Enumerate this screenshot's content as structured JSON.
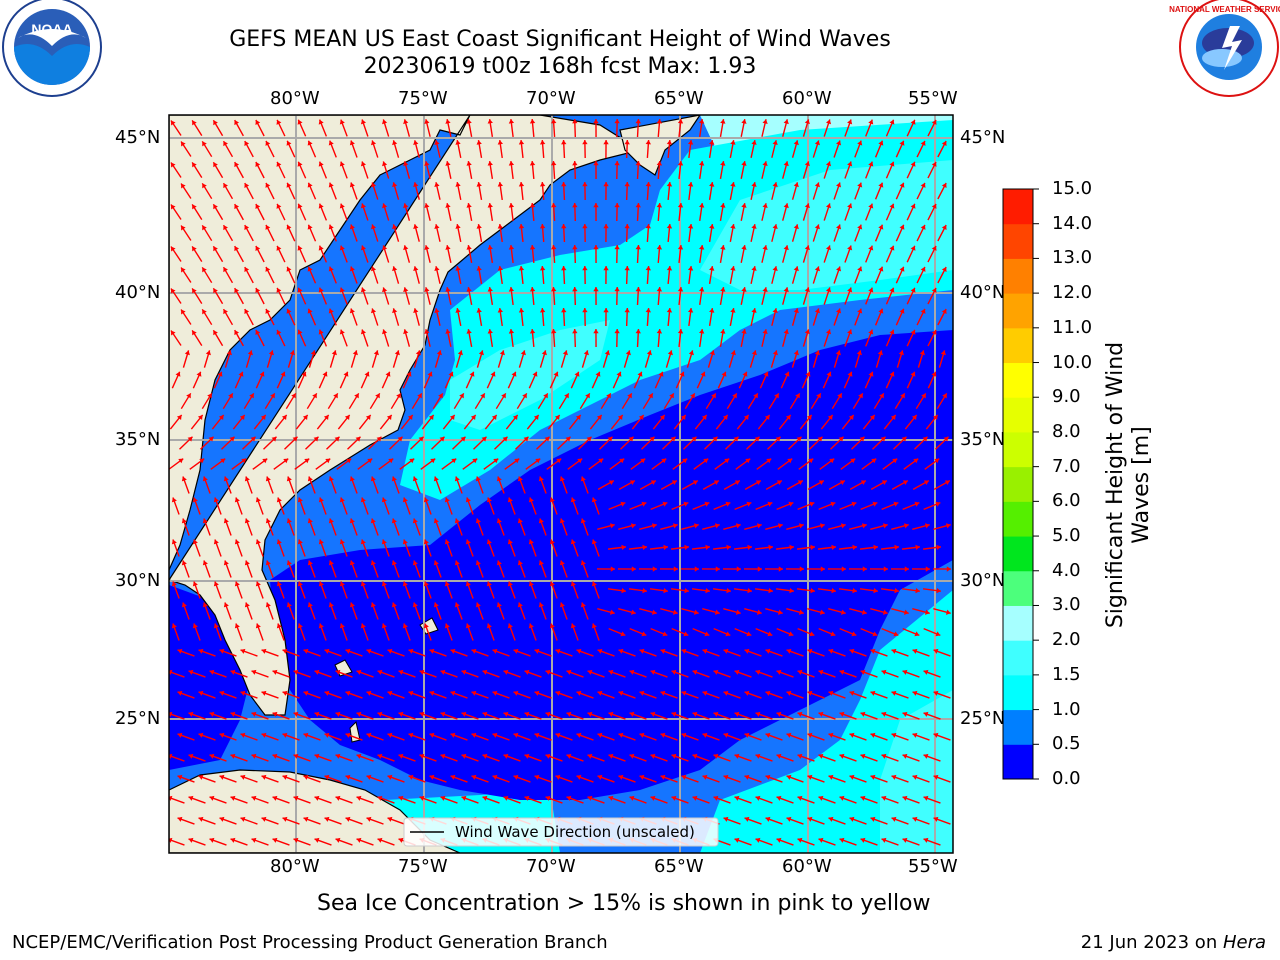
{
  "header": {
    "title_line1": "GEFS MEAN US East Coast Significant Height of Wind Waves",
    "title_line2": "20230619 t00z 168h fcst   Max: 1.93"
  },
  "logos": {
    "left_text": "NOAA",
    "right_text": "NATIONAL WEATHER SERVICE"
  },
  "map": {
    "lon_labels": [
      "80°W",
      "75°W",
      "70°W",
      "65°W",
      "60°W",
      "55°W"
    ],
    "lat_labels": [
      "45°N",
      "40°N",
      "35°N",
      "30°N",
      "25°N"
    ],
    "legend_label": "Wind Wave Direction (unscaled)",
    "colors": {
      "land": "#efedda",
      "c0": "#0000fe",
      "c05": "#0a7aff",
      "c1": "#00fdfe",
      "c15": "#3cfbfe",
      "c2": "#96fbfe",
      "arrow": "#ff0000"
    }
  },
  "colorbar": {
    "title": "Significant Height of Wind Waves [m]",
    "ticks": [
      "0.0",
      "0.5",
      "1.0",
      "1.5",
      "2.0",
      "3.0",
      "4.0",
      "5.0",
      "6.0",
      "7.0",
      "8.0",
      "9.0",
      "10.0",
      "11.0",
      "12.0",
      "13.0",
      "14.0",
      "15.0"
    ],
    "colors": [
      "#0000ff",
      "#007fff",
      "#00ffff",
      "#3fffff",
      "#a6ffff",
      "#4cff7c",
      "#00e61e",
      "#55ef00",
      "#99f000",
      "#ccff00",
      "#e6ff00",
      "#ffff00",
      "#ffcc00",
      "#ffa300",
      "#ff8000",
      "#ff4500",
      "#ff1c00"
    ]
  },
  "note": "Sea Ice Concentration > 15% is shown in pink to yellow",
  "footer": {
    "left": "NCEP/EMC/Verification Post Processing Product Generation Branch",
    "right_date": "21 Jun 2023 on ",
    "right_host": "Hera"
  }
}
